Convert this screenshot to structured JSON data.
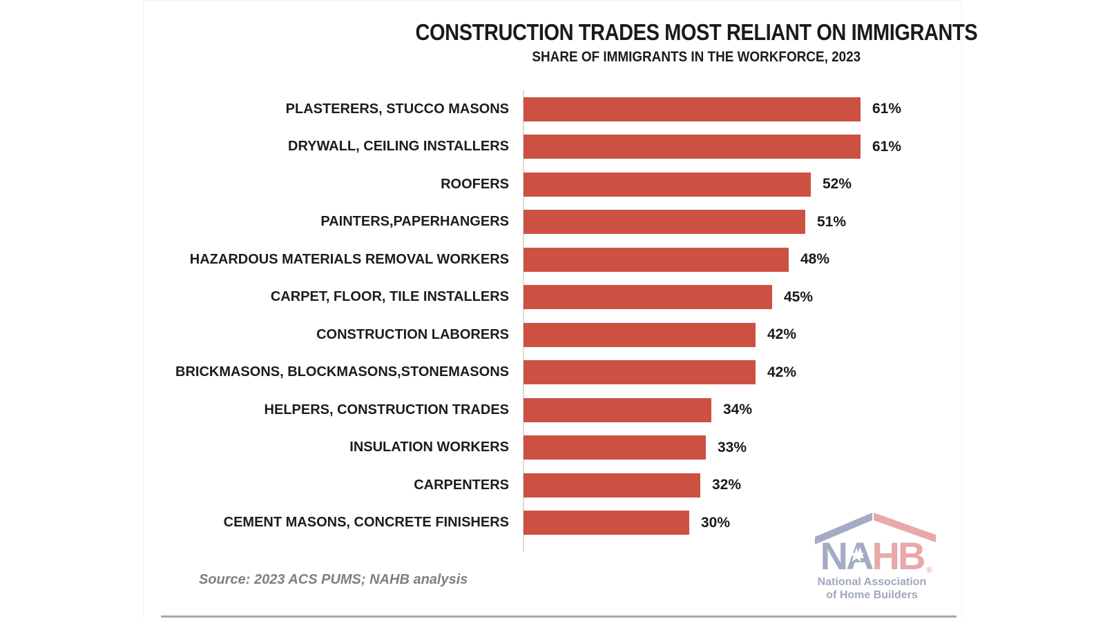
{
  "chart_data": {
    "type": "bar",
    "orientation": "horizontal",
    "title": "CONSTRUCTION TRADES MOST RELIANT ON IMMIGRANTS",
    "subtitle": "SHARE OF IMMIGRANTS IN THE WORKFORCE, 2023",
    "categories": [
      "PLASTERERS, STUCCO MASONS",
      "DRYWALL, CEILING INSTALLERS",
      "ROOFERS",
      "PAINTERS,PAPERHANGERS",
      "HAZARDOUS MATERIALS REMOVAL WORKERS",
      "CARPET, FLOOR, TILE INSTALLERS",
      "CONSTRUCTION LABORERS",
      "BRICKMASONS, BLOCKMASONS,STONEMASONS",
      "HELPERS, CONSTRUCTION TRADES",
      "INSULATION WORKERS",
      "CARPENTERS",
      "CEMENT MASONS, CONCRETE FINISHERS"
    ],
    "values": [
      61,
      61,
      52,
      51,
      48,
      45,
      42,
      42,
      34,
      33,
      32,
      30
    ],
    "value_suffix": "%",
    "xlabel": "",
    "ylabel": "",
    "xlim": [
      0,
      64
    ],
    "grid": false,
    "data_labels": true,
    "bar_color": "#cc5143",
    "axis_line_color": "#d9d9d9"
  },
  "source_note": "Source: 2023 ACS PUMS; NAHB analysis",
  "logo": {
    "acronym_left": "NA",
    "acronym_right": "HB",
    "star_icon": "★",
    "registered_mark": "®",
    "tagline_line1": "National Association",
    "tagline_line2": "of Home Builders",
    "color_blue": "#a4acc4",
    "color_red": "#e9a8a9",
    "color_tagline": "#9fa7bf"
  }
}
